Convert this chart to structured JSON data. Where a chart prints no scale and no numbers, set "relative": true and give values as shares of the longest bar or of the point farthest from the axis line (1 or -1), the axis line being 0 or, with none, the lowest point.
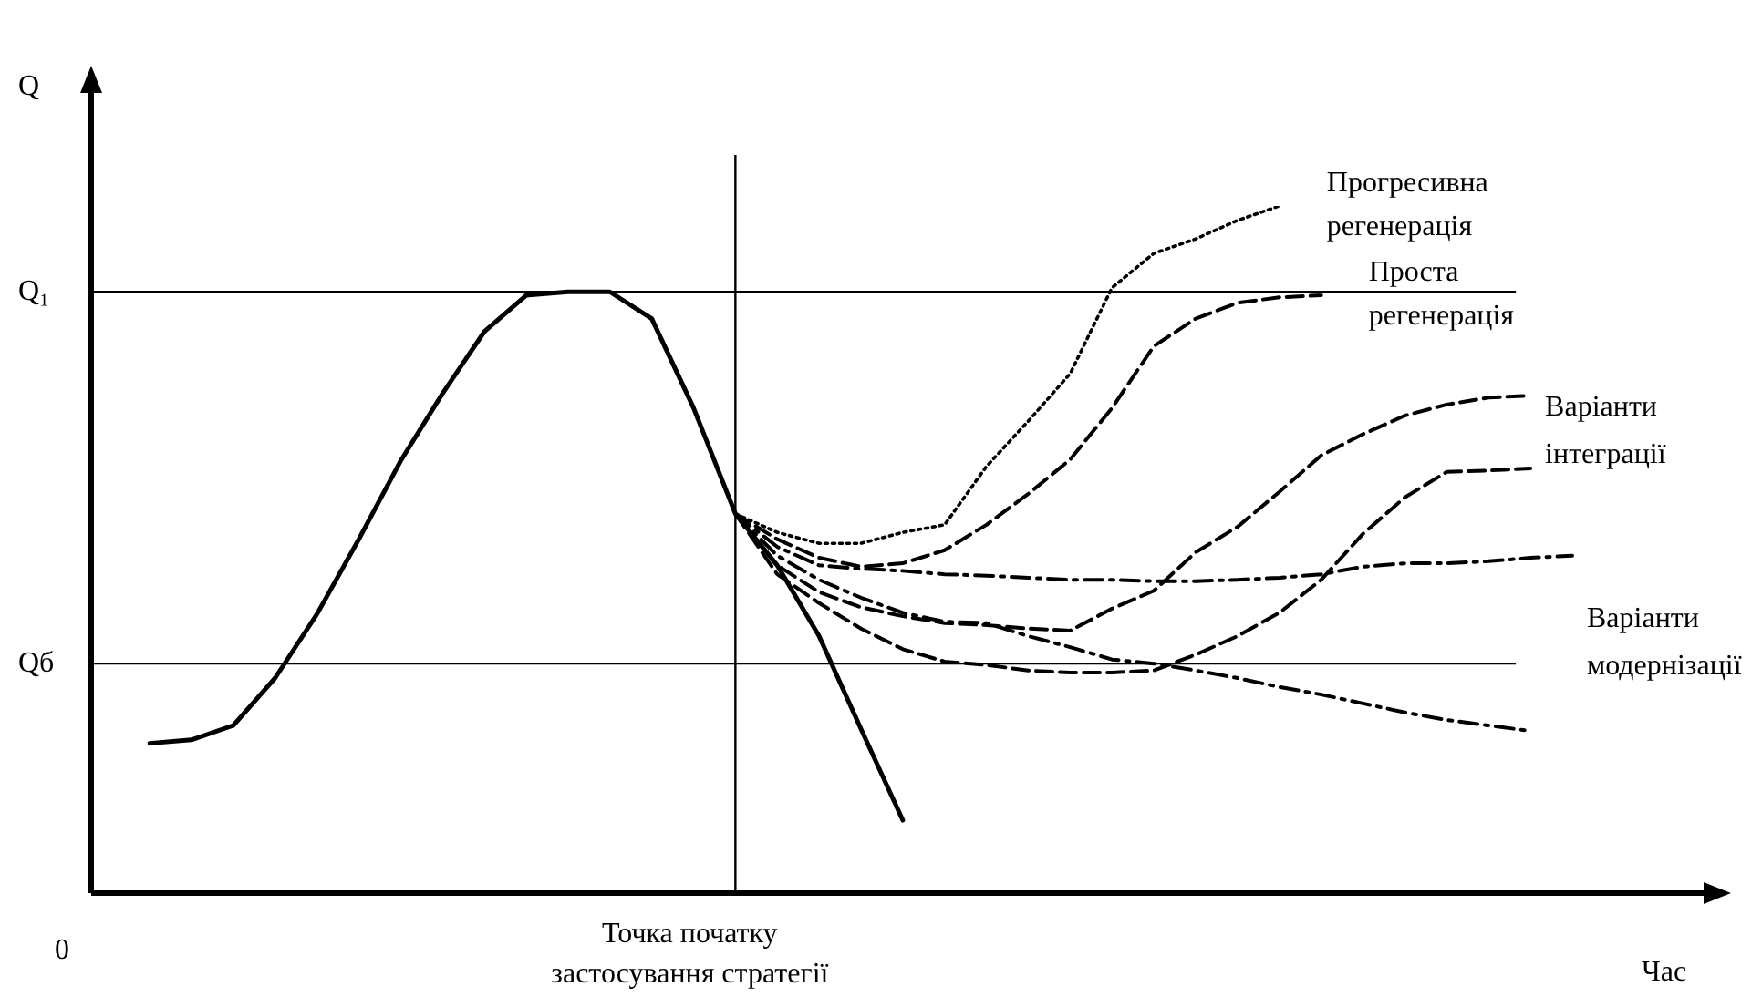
{
  "chart_data": {
    "type": "line",
    "relative": true,
    "ylabel": "Q",
    "xlabel": "Час",
    "categories": [
      null,
      null,
      null,
      null,
      null,
      null,
      null,
      null,
      null,
      null,
      null,
      null,
      null,
      null,
      null,
      null,
      null,
      null,
      null,
      null,
      null,
      null,
      null,
      null,
      null,
      null,
      null,
      null,
      null,
      null,
      null,
      null,
      null,
      null,
      null
    ],
    "ref_lines": [
      {
        "axis": "y",
        "value": 0.875,
        "label": "Q₁"
      },
      {
        "axis": "y",
        "value": 0.334,
        "label": "Qб"
      },
      {
        "axis": "x",
        "label": "Точка початку застосування стратегії"
      }
    ],
    "annotations": [
      "0",
      "Варіанти інтеграції",
      "Варіанти модернізації"
    ],
    "series": [
      {
        "color": "#000000",
        "line_style": "solid",
        "values": [
          0.218,
          0.223,
          0.244,
          0.313,
          0.406,
          0.515,
          0.629,
          0.727,
          0.817,
          0.87,
          0.875,
          0.875,
          0.836,
          0.706,
          0.552,
          0.477,
          0.374,
          0.239,
          0.106,
          null,
          null,
          null,
          null,
          null,
          null,
          null,
          null,
          null,
          null,
          null,
          null,
          null,
          null,
          null,
          null
        ]
      },
      {
        "name": "Прогресивна регенерація",
        "color": "#000000",
        "line_style": "dotted",
        "values": [
          null,
          null,
          null,
          null,
          null,
          null,
          null,
          null,
          null,
          null,
          null,
          null,
          null,
          null,
          0.552,
          0.525,
          0.509,
          0.509,
          0.525,
          0.536,
          0.621,
          0.687,
          0.756,
          0.881,
          0.931,
          0.952,
          0.979,
          1,
          null,
          null,
          null,
          null,
          null,
          null,
          null
        ]
      },
      {
        "name": "Проста регенерація",
        "color": "#000000",
        "line_style": "dashed",
        "values": [
          null,
          null,
          null,
          null,
          null,
          null,
          null,
          null,
          null,
          null,
          null,
          null,
          null,
          null,
          0.552,
          0.515,
          0.488,
          0.475,
          0.48,
          0.499,
          0.536,
          0.581,
          0.631,
          0.706,
          0.796,
          0.836,
          0.859,
          0.867,
          0.87,
          null,
          null,
          null,
          null,
          null,
          null
        ]
      },
      {
        "color": "#000000",
        "line_style": "dashed",
        "values": [
          null,
          null,
          null,
          null,
          null,
          null,
          null,
          null,
          null,
          null,
          null,
          null,
          null,
          null,
          0.552,
          0.477,
          0.438,
          0.416,
          0.403,
          0.393,
          0.39,
          0.385,
          0.382,
          0.414,
          0.44,
          0.496,
          0.533,
          0.584,
          0.637,
          0.668,
          0.695,
          0.711,
          0.721,
          0.724,
          null
        ]
      },
      {
        "color": "#000000",
        "line_style": "dashed",
        "values": [
          null,
          null,
          null,
          null,
          null,
          null,
          null,
          null,
          null,
          null,
          null,
          null,
          null,
          null,
          0.552,
          0.464,
          0.422,
          0.385,
          0.355,
          0.337,
          0.332,
          0.324,
          0.321,
          0.321,
          0.324,
          0.347,
          0.374,
          0.408,
          0.456,
          0.523,
          0.576,
          0.613,
          0.615,
          0.618,
          null
        ]
      },
      {
        "color": "#000000",
        "line_style": "dashdot",
        "values": [
          null,
          null,
          null,
          null,
          null,
          null,
          null,
          null,
          null,
          null,
          null,
          null,
          null,
          null,
          0.552,
          0.504,
          0.477,
          0.472,
          0.469,
          0.464,
          0.462,
          0.459,
          0.456,
          0.456,
          0.454,
          0.454,
          0.456,
          0.459,
          0.464,
          0.475,
          0.48,
          0.48,
          0.483,
          0.488,
          0.491
        ]
      },
      {
        "color": "#000000",
        "line_style": "dashdot",
        "values": [
          null,
          null,
          null,
          null,
          null,
          null,
          null,
          null,
          null,
          null,
          null,
          null,
          null,
          null,
          0.552,
          0.491,
          0.456,
          0.43,
          0.408,
          0.395,
          0.393,
          0.374,
          0.358,
          0.34,
          0.334,
          0.324,
          0.313,
          0.3,
          0.289,
          0.276,
          0.263,
          0.252,
          0.244,
          0.236,
          null
        ]
      }
    ]
  }
}
